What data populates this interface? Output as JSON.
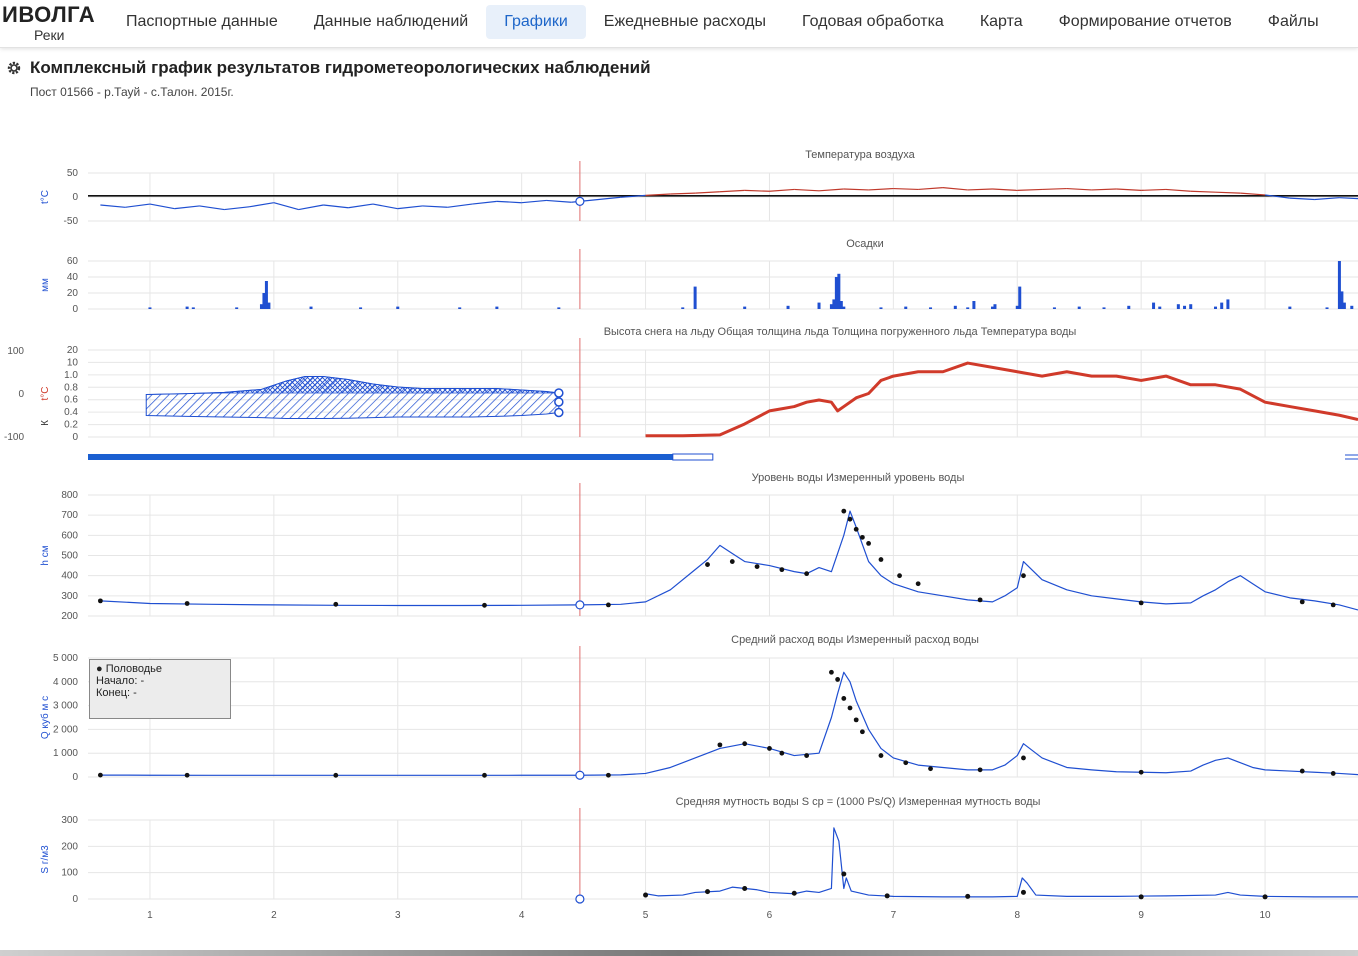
{
  "app": {
    "name": "ИВОЛГА",
    "subtitle": "Реки"
  },
  "nav": {
    "items": [
      "Паспортные данные",
      "Данные наблюдений",
      "Графики",
      "Ежедневные расходы",
      "Годовая обработка",
      "Карта",
      "Формирование отчетов",
      "Файлы"
    ],
    "active": 2
  },
  "page": {
    "title": "Комплексный график результатов гидрометеорологических наблюдений",
    "subtitle": "Пост 01566 - р.Тауй - с.Талон. 2015г."
  },
  "legend_box": {
    "label": "Половодье",
    "start": "Начало: -",
    "end": "Конец: -"
  },
  "colors": {
    "blue": "#1f4fd1",
    "red": "#d03a2a",
    "grid": "#e6e6e6",
    "tick": "#555"
  },
  "chart_data": {
    "type": "line",
    "x_ticks": [
      1,
      2,
      3,
      4,
      5,
      6,
      7,
      8,
      9,
      10
    ],
    "x_range": [
      0.5,
      10.75
    ],
    "cursor_x": 4.47,
    "panels": [
      {
        "id": "temp",
        "title": "Температура воздуха",
        "ylabel": "t°C",
        "ylim": [
          -55,
          50
        ],
        "yticks": [
          "50",
          "0",
          "-50"
        ],
        "series": [
          {
            "name": "Температура воздуха",
            "type": "line",
            "x": [
              0.6,
              0.8,
              1.0,
              1.2,
              1.4,
              1.6,
              1.8,
              2.0,
              2.2,
              2.4,
              2.6,
              2.8,
              3.0,
              3.2,
              3.4,
              3.6,
              3.8,
              4.0,
              4.2,
              4.4,
              4.47,
              4.8,
              5.0,
              5.2,
              5.4,
              5.6,
              5.8,
              6.0,
              6.2,
              6.4,
              6.6,
              6.8,
              7.0,
              7.2,
              7.4,
              7.6,
              7.8,
              8.0,
              8.2,
              8.4,
              8.6,
              8.8,
              9.0,
              9.2,
              9.4,
              9.6,
              9.8,
              10.0,
              10.2,
              10.4,
              10.6,
              10.75
            ],
            "values": [
              -20,
              -25,
              -18,
              -28,
              -22,
              -30,
              -24,
              -15,
              -30,
              -20,
              -26,
              -18,
              -28,
              -22,
              -25,
              -18,
              -12,
              -15,
              -10,
              -14,
              -12,
              -3,
              1,
              4,
              6,
              9,
              12,
              10,
              14,
              11,
              15,
              13,
              16,
              14,
              18,
              13,
              15,
              12,
              14,
              16,
              13,
              15,
              12,
              14,
              10,
              8,
              6,
              2,
              -5,
              -8,
              -4,
              -6
            ]
          }
        ]
      },
      {
        "id": "precip",
        "title": "Осадки",
        "ylabel": "мм",
        "ylim": [
          0,
          60
        ],
        "yticks": [
          "60",
          "40",
          "20",
          "0"
        ],
        "series": [
          {
            "name": "Осадки",
            "type": "bar",
            "x": [
              1.0,
              1.3,
              1.35,
              1.7,
              1.9,
              1.92,
              1.94,
              1.96,
              2.3,
              2.7,
              3.0,
              3.5,
              3.8,
              4.3,
              5.3,
              5.4,
              5.8,
              6.15,
              6.4,
              6.5,
              6.52,
              6.54,
              6.56,
              6.58,
              6.6,
              6.9,
              7.1,
              7.3,
              7.5,
              7.6,
              7.65,
              7.8,
              7.82,
              8.0,
              8.02,
              8.3,
              8.5,
              8.7,
              8.9,
              9.1,
              9.15,
              9.3,
              9.35,
              9.4,
              9.6,
              9.65,
              9.7,
              10.2,
              10.5,
              10.6,
              10.62,
              10.64,
              10.7
            ],
            "values": [
              2,
              3,
              2,
              2,
              6,
              20,
              35,
              8,
              3,
              2,
              3,
              2,
              3,
              2,
              2,
              28,
              3,
              4,
              8,
              6,
              12,
              40,
              44,
              10,
              3,
              2,
              3,
              2,
              4,
              2,
              10,
              3,
              6,
              4,
              28,
              2,
              3,
              2,
              4,
              8,
              3,
              6,
              4,
              6,
              3,
              8,
              12,
              3,
              2,
              60,
              22,
              8,
              4
            ]
          }
        ]
      },
      {
        "id": "ice",
        "title": "Высота снега на льду    Общая толщина льда    Толщина погруженного льда    Температура воды",
        "ylabel": "t°C",
        "ylim": [
          0,
          20
        ],
        "yticks": [
          "20",
          "10",
          "1.0",
          "0.8",
          "0.6",
          "0.4",
          "0.2",
          "0"
        ],
        "left_axis": [
          "100",
          "0",
          "-100"
        ],
        "ice_x": [
          0.97,
          1.3,
          1.6,
          1.9,
          2.1,
          2.25,
          2.4,
          2.6,
          2.8,
          3.0,
          3.2,
          3.4,
          3.6,
          3.8,
          4.0,
          4.2,
          4.3
        ],
        "ice_top": [
          0.35,
          0.38,
          0.42,
          0.52,
          0.8,
          0.95,
          0.95,
          0.85,
          0.7,
          0.6,
          0.55,
          0.55,
          0.55,
          0.55,
          0.5,
          0.45,
          0.4
        ],
        "ice_bottom": [
          -0.35,
          -0.38,
          -0.4,
          -0.42,
          -0.45,
          -0.45,
          -0.45,
          -0.44,
          -0.42,
          -0.4,
          -0.4,
          -0.4,
          -0.4,
          -0.38,
          -0.35,
          -0.3,
          -0.25
        ],
        "series": [
          {
            "name": "Температура воды",
            "type": "line",
            "x": [
              5.0,
              5.3,
              5.6,
              5.8,
              6.0,
              6.1,
              6.2,
              6.3,
              6.4,
              6.5,
              6.55,
              6.6,
              6.7,
              6.8,
              6.9,
              7.0,
              7.2,
              7.4,
              7.6,
              7.8,
              8.0,
              8.2,
              8.4,
              8.6,
              8.8,
              9.0,
              9.2,
              9.4,
              9.6,
              9.8,
              10.0,
              10.2,
              10.4,
              10.6,
              10.75
            ],
            "values": [
              0.3,
              0.3,
              0.5,
              3,
              6,
              6.5,
              7,
              8,
              8.5,
              8,
              6,
              7,
              9,
              10,
              13,
              14,
              15,
              15,
              17,
              16,
              15,
              14,
              15,
              14,
              14,
              13,
              14,
              12,
              12,
              11,
              8,
              7,
              6,
              5,
              4
            ]
          }
        ]
      },
      {
        "id": "level",
        "title": "Уровень воды    Измеренный уровень воды",
        "ylabel": "h см",
        "ylim": [
          200,
          800
        ],
        "yticks": [
          "800",
          "700",
          "600",
          "500",
          "400",
          "300",
          "200"
        ],
        "series": [
          {
            "name": "Уровень воды",
            "type": "line",
            "x": [
              0.6,
              1.0,
              1.5,
              2.0,
              2.5,
              3.0,
              3.5,
              4.0,
              4.47,
              4.8,
              5.0,
              5.2,
              5.4,
              5.5,
              5.6,
              5.7,
              5.8,
              5.9,
              6.0,
              6.2,
              6.3,
              6.4,
              6.5,
              6.6,
              6.65,
              6.7,
              6.8,
              6.9,
              7.0,
              7.2,
              7.4,
              7.6,
              7.8,
              7.9,
              8.0,
              8.05,
              8.2,
              8.4,
              8.6,
              8.8,
              9.0,
              9.2,
              9.4,
              9.5,
              9.6,
              9.7,
              9.8,
              9.9,
              10.0,
              10.2,
              10.4,
              10.6,
              10.75
            ],
            "values": [
              275,
              262,
              258,
              255,
              253,
              252,
              252,
              253,
              255,
              258,
              270,
              330,
              430,
              480,
              550,
              510,
              470,
              460,
              450,
              420,
              410,
              440,
              420,
              600,
              720,
              640,
              470,
              400,
              360,
              320,
              300,
              280,
              270,
              300,
              340,
              470,
              380,
              330,
              300,
              285,
              270,
              260,
              265,
              300,
              330,
              370,
              400,
              360,
              320,
              290,
              275,
              255,
              230
            ]
          },
          {
            "name": "Измеренный уровень воды",
            "type": "scatter",
            "x": [
              0.6,
              1.3,
              2.5,
              3.7,
              4.7,
              5.5,
              5.7,
              5.9,
              6.1,
              6.3,
              6.6,
              6.65,
              6.7,
              6.75,
              6.8,
              6.9,
              7.05,
              7.2,
              7.7,
              8.05,
              9.0,
              10.3,
              10.55
            ],
            "values": [
              275,
              262,
              258,
              253,
              255,
              455,
              470,
              445,
              430,
              410,
              720,
              680,
              630,
              590,
              560,
              480,
              400,
              360,
              280,
              400,
              265,
              270,
              255
            ]
          }
        ]
      },
      {
        "id": "discharge",
        "title": "Средний расход воды    Измеренный расход воды",
        "ylabel": "Q куб м с",
        "ylim": [
          0,
          5000
        ],
        "yticks": [
          "5 000",
          "4 000",
          "3 000",
          "2 000",
          "1 000",
          "0"
        ],
        "series": [
          {
            "name": "Средний расход воды",
            "type": "line",
            "x": [
              0.6,
              1.0,
              1.5,
              2.0,
              2.5,
              3.0,
              3.5,
              4.0,
              4.47,
              4.8,
              5.0,
              5.2,
              5.4,
              5.6,
              5.8,
              6.0,
              6.2,
              6.4,
              6.5,
              6.55,
              6.6,
              6.65,
              6.7,
              6.8,
              6.9,
              7.0,
              7.2,
              7.4,
              7.6,
              7.8,
              7.9,
              8.0,
              8.05,
              8.2,
              8.4,
              8.6,
              8.8,
              9.0,
              9.2,
              9.4,
              9.5,
              9.6,
              9.7,
              9.8,
              9.9,
              10.0,
              10.2,
              10.4,
              10.6,
              10.75
            ],
            "values": [
              80,
              75,
              70,
              70,
              70,
              70,
              70,
              72,
              75,
              90,
              150,
              400,
              800,
              1200,
              1400,
              1200,
              900,
              1000,
              2500,
              3500,
              4400,
              4000,
              3200,
              2000,
              1200,
              800,
              500,
              400,
              300,
              300,
              500,
              900,
              1400,
              800,
              400,
              300,
              220,
              200,
              180,
              250,
              500,
              700,
              800,
              600,
              400,
              300,
              250,
              200,
              150,
              100
            ]
          },
          {
            "name": "Измеренный расход воды",
            "type": "scatter",
            "x": [
              0.6,
              1.3,
              2.5,
              3.7,
              4.7,
              5.6,
              5.8,
              6.0,
              6.1,
              6.3,
              6.5,
              6.55,
              6.6,
              6.65,
              6.7,
              6.75,
              6.9,
              7.1,
              7.3,
              7.7,
              8.05,
              9.0,
              10.3,
              10.55
            ],
            "values": [
              80,
              75,
              70,
              70,
              75,
              1350,
              1400,
              1200,
              1000,
              900,
              4400,
              4100,
              3300,
              2900,
              2400,
              1900,
              900,
              600,
              350,
              300,
              800,
              200,
              250,
              150
            ]
          }
        ]
      },
      {
        "id": "turbidity",
        "title": "Средняя мутность воды    S ср = (1000 Ps/Q)    Измеренная мутность воды",
        "ylabel": "S г/м3",
        "ylim": [
          0,
          300
        ],
        "yticks": [
          "300",
          "200",
          "100",
          "0"
        ],
        "series": [
          {
            "name": "Средняя мутность воды",
            "type": "line",
            "x": [
              5.0,
              5.1,
              5.3,
              5.4,
              5.6,
              5.7,
              5.9,
              6.0,
              6.2,
              6.3,
              6.4,
              6.5,
              6.52,
              6.56,
              6.6,
              6.62,
              6.66,
              6.8,
              7.0,
              7.4,
              7.8,
              8.0,
              8.04,
              8.08,
              8.15,
              8.4,
              8.8,
              9.2,
              9.6,
              9.7,
              9.8,
              10.0,
              10.4,
              10.75
            ],
            "values": [
              20,
              12,
              15,
              25,
              30,
              45,
              35,
              25,
              20,
              30,
              25,
              40,
              270,
              220,
              40,
              80,
              30,
              15,
              10,
              8,
              8,
              10,
              80,
              60,
              15,
              10,
              10,
              12,
              15,
              25,
              15,
              10,
              8,
              8
            ]
          },
          {
            "name": "Измеренная мутность воды",
            "type": "scatter",
            "x": [
              5.0,
              5.5,
              5.8,
              6.2,
              6.6,
              6.95,
              7.6,
              8.05,
              9.0,
              10.0
            ],
            "values": [
              15,
              28,
              40,
              22,
              95,
              12,
              10,
              25,
              8,
              8
            ]
          }
        ]
      }
    ]
  }
}
